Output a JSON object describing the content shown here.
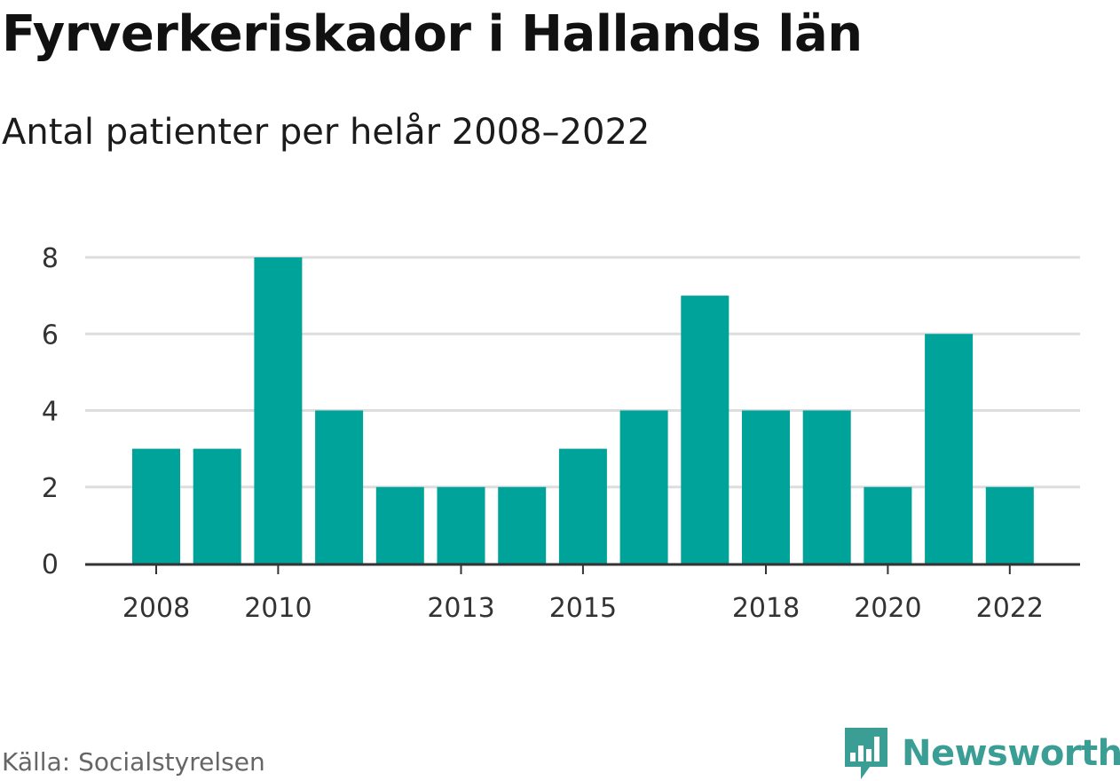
{
  "chart_data": {
    "type": "bar",
    "title": "Fyrverkeriskador i Hallands län",
    "subtitle": "Antal patienter per helår 2008–2022",
    "categories": [
      "2008",
      "2009",
      "2010",
      "2011",
      "2012",
      "2013",
      "2014",
      "2015",
      "2016",
      "2017",
      "2018",
      "2019",
      "2020",
      "2021",
      "2022"
    ],
    "values": [
      3,
      3,
      8,
      4,
      2,
      2,
      2,
      3,
      4,
      7,
      4,
      4,
      2,
      6,
      2
    ],
    "x_tick_labels": [
      "2008",
      "2010",
      "2013",
      "2015",
      "2018",
      "2020",
      "2022"
    ],
    "y_ticks": [
      0,
      2,
      4,
      6,
      8
    ],
    "ylim": [
      0,
      8
    ],
    "grid": true,
    "bar_color": "#00a39a",
    "grid_color": "#dddddd",
    "axis_color": "#333333"
  },
  "footer": {
    "source": "Källa: Socialstyrelsen",
    "brand": "Newsworthy",
    "brand_color": "#3a9e95",
    "logo_icon": "newsworthy-logo-icon"
  }
}
